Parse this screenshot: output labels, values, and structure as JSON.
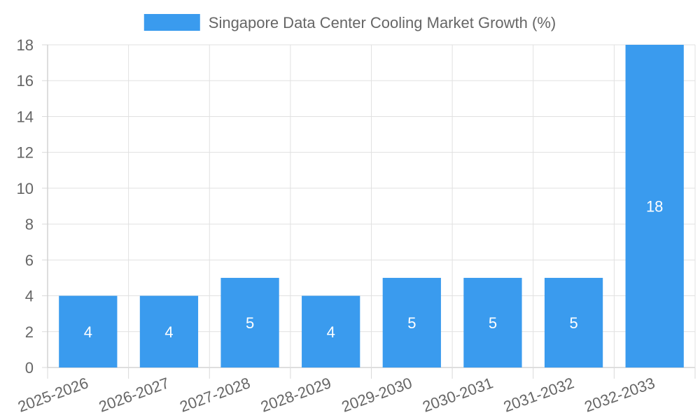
{
  "chart_data": {
    "type": "bar",
    "categories": [
      "2025-2026",
      "2026-2027",
      "2027-2028",
      "2028-2029",
      "2029-2030",
      "2030-2031",
      "2031-2032",
      "2032-2033"
    ],
    "series": [
      {
        "name": "Singapore Data Center Cooling Market Growth (%)",
        "values": [
          4,
          4,
          5,
          4,
          5,
          5,
          5,
          18
        ],
        "color": "#3a9bee"
      }
    ],
    "ylim": [
      0,
      18
    ],
    "yticks": [
      0,
      2,
      4,
      6,
      8,
      10,
      12,
      14,
      16,
      18
    ],
    "grid": true,
    "legend_position": "top",
    "data_labels": true,
    "xlabel": "",
    "ylabel": ""
  }
}
